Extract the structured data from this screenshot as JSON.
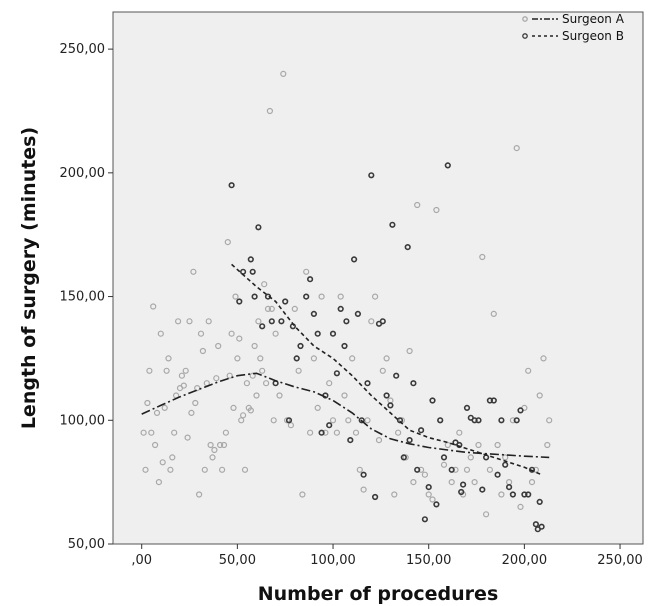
{
  "chart_data": {
    "type": "scatter",
    "xlabel": "Number of procedures",
    "ylabel": "Length of surgery (minutes)",
    "xlim": [
      -15,
      262
    ],
    "ylim": [
      50,
      265
    ],
    "x_ticks": [
      0,
      50,
      100,
      150,
      200,
      250
    ],
    "x_tick_labels": [
      ",00",
      "50,00",
      "100,00",
      "150,00",
      "200,00",
      "250,00"
    ],
    "y_ticks": [
      50,
      100,
      150,
      200,
      250
    ],
    "y_tick_labels": [
      "50,00",
      "100,00",
      "150,00",
      "200,00",
      "250,00"
    ],
    "grid": false,
    "legend_position": "top-right",
    "plot_background": "#efefef",
    "series": [
      {
        "name": "Surgeon A",
        "marker_color": "#a8a8a8",
        "line_style": "dash-dot",
        "points": [
          [
            1,
            95
          ],
          [
            2,
            80
          ],
          [
            3,
            107
          ],
          [
            4,
            120
          ],
          [
            5,
            95
          ],
          [
            6,
            146
          ],
          [
            7,
            90
          ],
          [
            8,
            103
          ],
          [
            9,
            75
          ],
          [
            10,
            135
          ],
          [
            11,
            83
          ],
          [
            12,
            105
          ],
          [
            13,
            120
          ],
          [
            14,
            125
          ],
          [
            15,
            80
          ],
          [
            16,
            85
          ],
          [
            17,
            95
          ],
          [
            18,
            110
          ],
          [
            19,
            140
          ],
          [
            20,
            113
          ],
          [
            21,
            118
          ],
          [
            22,
            114
          ],
          [
            23,
            120
          ],
          [
            24,
            93
          ],
          [
            25,
            140
          ],
          [
            26,
            103
          ],
          [
            27,
            160
          ],
          [
            28,
            107
          ],
          [
            29,
            113
          ],
          [
            30,
            70
          ],
          [
            31,
            135
          ],
          [
            32,
            128
          ],
          [
            33,
            80
          ],
          [
            34,
            115
          ],
          [
            35,
            140
          ],
          [
            36,
            90
          ],
          [
            37,
            85
          ],
          [
            38,
            88
          ],
          [
            39,
            117
          ],
          [
            40,
            130
          ],
          [
            41,
            90
          ],
          [
            42,
            80
          ],
          [
            43,
            90
          ],
          [
            44,
            95
          ],
          [
            45,
            172
          ],
          [
            46,
            118
          ],
          [
            47,
            135
          ],
          [
            48,
            105
          ],
          [
            49,
            150
          ],
          [
            50,
            125
          ],
          [
            51,
            133
          ],
          [
            52,
            100
          ],
          [
            53,
            102
          ],
          [
            54,
            80
          ],
          [
            55,
            115
          ],
          [
            56,
            105
          ],
          [
            57,
            104
          ],
          [
            58,
            118
          ],
          [
            59,
            130
          ],
          [
            60,
            110
          ],
          [
            61,
            140
          ],
          [
            62,
            125
          ],
          [
            63,
            120
          ],
          [
            64,
            155
          ],
          [
            65,
            115
          ],
          [
            66,
            145
          ],
          [
            67,
            225
          ],
          [
            68,
            145
          ],
          [
            69,
            100
          ],
          [
            70,
            135
          ],
          [
            72,
            110
          ],
          [
            74,
            240
          ],
          [
            76,
            100
          ],
          [
            78,
            98
          ],
          [
            80,
            145
          ],
          [
            82,
            120
          ],
          [
            84,
            70
          ],
          [
            86,
            160
          ],
          [
            88,
            95
          ],
          [
            90,
            125
          ],
          [
            92,
            105
          ],
          [
            94,
            150
          ],
          [
            96,
            95
          ],
          [
            98,
            115
          ],
          [
            100,
            100
          ],
          [
            102,
            95
          ],
          [
            104,
            150
          ],
          [
            106,
            110
          ],
          [
            108,
            100
          ],
          [
            110,
            125
          ],
          [
            112,
            95
          ],
          [
            114,
            80
          ],
          [
            116,
            72
          ],
          [
            118,
            100
          ],
          [
            120,
            140
          ],
          [
            122,
            150
          ],
          [
            124,
            92
          ],
          [
            126,
            120
          ],
          [
            128,
            125
          ],
          [
            130,
            108
          ],
          [
            132,
            70
          ],
          [
            134,
            95
          ],
          [
            136,
            100
          ],
          [
            138,
            85
          ],
          [
            140,
            128
          ],
          [
            142,
            75
          ],
          [
            144,
            187
          ],
          [
            146,
            80
          ],
          [
            148,
            78
          ],
          [
            150,
            70
          ],
          [
            152,
            68
          ],
          [
            154,
            185
          ],
          [
            156,
            100
          ],
          [
            158,
            82
          ],
          [
            160,
            90
          ],
          [
            162,
            75
          ],
          [
            164,
            80
          ],
          [
            166,
            95
          ],
          [
            168,
            70
          ],
          [
            170,
            80
          ],
          [
            172,
            85
          ],
          [
            174,
            75
          ],
          [
            176,
            90
          ],
          [
            178,
            166
          ],
          [
            180,
            62
          ],
          [
            182,
            80
          ],
          [
            184,
            143
          ],
          [
            186,
            90
          ],
          [
            188,
            70
          ],
          [
            190,
            85
          ],
          [
            192,
            75
          ],
          [
            194,
            100
          ],
          [
            196,
            210
          ],
          [
            198,
            65
          ],
          [
            200,
            105
          ],
          [
            202,
            120
          ],
          [
            204,
            75
          ],
          [
            206,
            80
          ],
          [
            208,
            110
          ],
          [
            210,
            125
          ],
          [
            212,
            90
          ],
          [
            213,
            100
          ]
        ]
      },
      {
        "name": "Surgeon B",
        "marker_color": "#3a3a3a",
        "line_style": "dashed",
        "points": [
          [
            47,
            195
          ],
          [
            51,
            148
          ],
          [
            53,
            160
          ],
          [
            57,
            165
          ],
          [
            58,
            160
          ],
          [
            59,
            150
          ],
          [
            61,
            178
          ],
          [
            63,
            138
          ],
          [
            66,
            150
          ],
          [
            68,
            140
          ],
          [
            70,
            115
          ],
          [
            73,
            140
          ],
          [
            75,
            148
          ],
          [
            77,
            100
          ],
          [
            79,
            138
          ],
          [
            81,
            125
          ],
          [
            83,
            130
          ],
          [
            86,
            150
          ],
          [
            88,
            157
          ],
          [
            90,
            143
          ],
          [
            92,
            135
          ],
          [
            94,
            95
          ],
          [
            96,
            110
          ],
          [
            98,
            98
          ],
          [
            100,
            135
          ],
          [
            102,
            119
          ],
          [
            104,
            145
          ],
          [
            106,
            130
          ],
          [
            107,
            140
          ],
          [
            109,
            92
          ],
          [
            111,
            165
          ],
          [
            113,
            143
          ],
          [
            115,
            100
          ],
          [
            116,
            78
          ],
          [
            118,
            115
          ],
          [
            120,
            199
          ],
          [
            122,
            69
          ],
          [
            124,
            139
          ],
          [
            126,
            140
          ],
          [
            128,
            110
          ],
          [
            130,
            106
          ],
          [
            131,
            179
          ],
          [
            133,
            118
          ],
          [
            135,
            100
          ],
          [
            137,
            85
          ],
          [
            139,
            170
          ],
          [
            140,
            92
          ],
          [
            142,
            115
          ],
          [
            144,
            80
          ],
          [
            146,
            96
          ],
          [
            148,
            60
          ],
          [
            150,
            73
          ],
          [
            152,
            108
          ],
          [
            154,
            66
          ],
          [
            156,
            100
          ],
          [
            158,
            85
          ],
          [
            160,
            203
          ],
          [
            162,
            80
          ],
          [
            164,
            91
          ],
          [
            166,
            90
          ],
          [
            167,
            71
          ],
          [
            168,
            74
          ],
          [
            170,
            105
          ],
          [
            172,
            101
          ],
          [
            174,
            100
          ],
          [
            176,
            100
          ],
          [
            178,
            72
          ],
          [
            180,
            85
          ],
          [
            182,
            108
          ],
          [
            184,
            108
          ],
          [
            186,
            78
          ],
          [
            188,
            100
          ],
          [
            190,
            82
          ],
          [
            192,
            73
          ],
          [
            194,
            70
          ],
          [
            196,
            100
          ],
          [
            198,
            104
          ],
          [
            200,
            70
          ],
          [
            202,
            70
          ],
          [
            204,
            80
          ],
          [
            206,
            58
          ],
          [
            207,
            56
          ],
          [
            208,
            67
          ],
          [
            209,
            57
          ]
        ]
      }
    ],
    "fit_lines": [
      {
        "name": "Surgeon A",
        "points": [
          [
            0,
            102.5
          ],
          [
            10,
            106
          ],
          [
            20,
            109.5
          ],
          [
            30,
            112.5
          ],
          [
            40,
            115.5
          ],
          [
            50,
            118
          ],
          [
            60,
            119
          ],
          [
            65,
            117.5
          ],
          [
            70,
            116
          ],
          [
            80,
            113.5
          ],
          [
            90,
            111.5
          ],
          [
            100,
            108
          ],
          [
            110,
            103
          ],
          [
            120,
            96.5
          ],
          [
            130,
            92.5
          ],
          [
            140,
            90.5
          ],
          [
            150,
            89
          ],
          [
            160,
            88
          ],
          [
            170,
            87
          ],
          [
            180,
            86.5
          ],
          [
            190,
            86
          ],
          [
            200,
            85.5
          ],
          [
            213,
            85
          ]
        ]
      },
      {
        "name": "Surgeon B",
        "points": [
          [
            47,
            163
          ],
          [
            60,
            154
          ],
          [
            70,
            148
          ],
          [
            80,
            138
          ],
          [
            90,
            130
          ],
          [
            100,
            125
          ],
          [
            110,
            118
          ],
          [
            120,
            110
          ],
          [
            130,
            103
          ],
          [
            140,
            96
          ],
          [
            150,
            93
          ],
          [
            160,
            91
          ],
          [
            170,
            88.5
          ],
          [
            180,
            86
          ],
          [
            190,
            83.5
          ],
          [
            200,
            81
          ],
          [
            209,
            78
          ]
        ]
      }
    ]
  }
}
